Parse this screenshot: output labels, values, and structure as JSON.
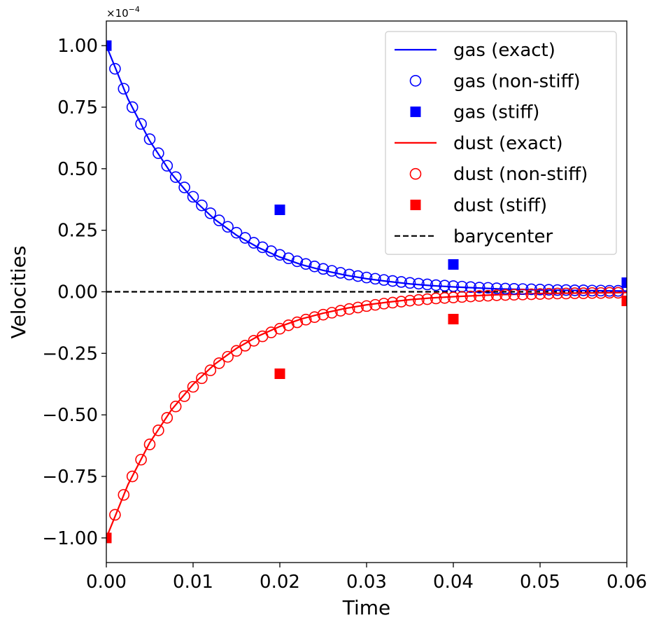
{
  "chart_data": {
    "type": "line",
    "xlabel": "Time",
    "ylabel": "Velocities",
    "xlim": [
      0,
      0.06
    ],
    "ylim": [
      -1.1,
      1.1
    ],
    "y_offset_text": "×10",
    "y_offset_exponent": "−4",
    "x_ticks": [
      {
        "value": 0.0,
        "label": "0.00"
      },
      {
        "value": 0.01,
        "label": "0.01"
      },
      {
        "value": 0.02,
        "label": "0.02"
      },
      {
        "value": 0.03,
        "label": "0.03"
      },
      {
        "value": 0.04,
        "label": "0.04"
      },
      {
        "value": 0.05,
        "label": "0.05"
      },
      {
        "value": 0.06,
        "label": "0.06"
      }
    ],
    "y_ticks": [
      {
        "value": 1.0,
        "label": "1.00"
      },
      {
        "value": 0.75,
        "label": "0.75"
      },
      {
        "value": 0.5,
        "label": "0.50"
      },
      {
        "value": 0.25,
        "label": "0.25"
      },
      {
        "value": 0.0,
        "label": "0.00"
      },
      {
        "value": -0.25,
        "label": "−0.25"
      },
      {
        "value": -0.5,
        "label": "−0.50"
      },
      {
        "value": -0.75,
        "label": "−0.75"
      },
      {
        "value": -1.0,
        "label": "−1.00"
      }
    ],
    "legend_position": "top-right",
    "grid": false,
    "series": [
      {
        "name": "gas (exact)",
        "kind": "line",
        "color": "#0000ff",
        "dash": "solid",
        "x": [
          0,
          0.0025,
          0.005,
          0.0075,
          0.01,
          0.0125,
          0.015,
          0.0175,
          0.02,
          0.0225,
          0.025,
          0.0275,
          0.03,
          0.0325,
          0.035,
          0.0375,
          0.04,
          0.0425,
          0.045,
          0.0475,
          0.05,
          0.0525,
          0.055,
          0.0575,
          0.06
        ],
        "y": [
          1.0,
          0.783,
          0.613,
          0.48,
          0.376,
          0.294,
          0.23,
          0.18,
          0.141,
          0.11,
          0.087,
          0.068,
          0.053,
          0.042,
          0.032,
          0.025,
          0.02,
          0.016,
          0.012,
          0.01,
          0.007,
          0.006,
          0.005,
          0.004,
          0.003
        ]
      },
      {
        "name": "gas (non-stiff)",
        "kind": "marker",
        "marker": "circle-open",
        "color": "#0000ff",
        "x": [
          0.001,
          0.002,
          0.003,
          0.004,
          0.005,
          0.006,
          0.007,
          0.008,
          0.009,
          0.01,
          0.011,
          0.012,
          0.013,
          0.014,
          0.015,
          0.016,
          0.017,
          0.018,
          0.019,
          0.02,
          0.021,
          0.022,
          0.023,
          0.024,
          0.025,
          0.026,
          0.027,
          0.028,
          0.029,
          0.03,
          0.031,
          0.032,
          0.033,
          0.034,
          0.035,
          0.036,
          0.037,
          0.038,
          0.039,
          0.04,
          0.041,
          0.042,
          0.043,
          0.044,
          0.045,
          0.046,
          0.047,
          0.048,
          0.049,
          0.05,
          0.051,
          0.052,
          0.053,
          0.054,
          0.055,
          0.056,
          0.057,
          0.058,
          0.059
        ],
        "y": [
          0.906,
          0.825,
          0.75,
          0.682,
          0.62,
          0.563,
          0.512,
          0.466,
          0.424,
          0.386,
          0.351,
          0.319,
          0.29,
          0.264,
          0.24,
          0.219,
          0.199,
          0.181,
          0.165,
          0.15,
          0.136,
          0.124,
          0.113,
          0.103,
          0.093,
          0.085,
          0.077,
          0.07,
          0.064,
          0.058,
          0.053,
          0.048,
          0.044,
          0.04,
          0.036,
          0.033,
          0.03,
          0.027,
          0.025,
          0.023,
          0.021,
          0.019,
          0.017,
          0.016,
          0.014,
          0.013,
          0.012,
          0.011,
          0.01,
          0.009,
          0.008,
          0.007,
          0.007,
          0.006,
          0.006,
          0.005,
          0.005,
          0.004,
          0.004
        ]
      },
      {
        "name": "gas (stiff)",
        "kind": "marker",
        "marker": "square-filled",
        "color": "#0000ff",
        "x": [
          0.0,
          0.02,
          0.04,
          0.06
        ],
        "y": [
          1.0,
          0.333,
          0.111,
          0.037
        ]
      },
      {
        "name": "dust (exact)",
        "kind": "line",
        "color": "#ff0000",
        "dash": "solid",
        "x": [
          0,
          0.0025,
          0.005,
          0.0075,
          0.01,
          0.0125,
          0.015,
          0.0175,
          0.02,
          0.0225,
          0.025,
          0.0275,
          0.03,
          0.0325,
          0.035,
          0.0375,
          0.04,
          0.0425,
          0.045,
          0.0475,
          0.05,
          0.0525,
          0.055,
          0.0575,
          0.06
        ],
        "y": [
          -1.0,
          -0.783,
          -0.613,
          -0.48,
          -0.376,
          -0.294,
          -0.23,
          -0.18,
          -0.141,
          -0.11,
          -0.087,
          -0.068,
          -0.053,
          -0.042,
          -0.032,
          -0.025,
          -0.02,
          -0.016,
          -0.012,
          -0.01,
          -0.007,
          -0.006,
          -0.005,
          -0.004,
          -0.003
        ]
      },
      {
        "name": "dust (non-stiff)",
        "kind": "marker",
        "marker": "circle-open",
        "color": "#ff0000",
        "x": [
          0.001,
          0.002,
          0.003,
          0.004,
          0.005,
          0.006,
          0.007,
          0.008,
          0.009,
          0.01,
          0.011,
          0.012,
          0.013,
          0.014,
          0.015,
          0.016,
          0.017,
          0.018,
          0.019,
          0.02,
          0.021,
          0.022,
          0.023,
          0.024,
          0.025,
          0.026,
          0.027,
          0.028,
          0.029,
          0.03,
          0.031,
          0.032,
          0.033,
          0.034,
          0.035,
          0.036,
          0.037,
          0.038,
          0.039,
          0.04,
          0.041,
          0.042,
          0.043,
          0.044,
          0.045,
          0.046,
          0.047,
          0.048,
          0.049,
          0.05,
          0.051,
          0.052,
          0.053,
          0.054,
          0.055,
          0.056,
          0.057,
          0.058,
          0.059
        ],
        "y": [
          -0.906,
          -0.825,
          -0.75,
          -0.682,
          -0.62,
          -0.563,
          -0.512,
          -0.466,
          -0.424,
          -0.386,
          -0.351,
          -0.319,
          -0.29,
          -0.264,
          -0.24,
          -0.219,
          -0.199,
          -0.181,
          -0.165,
          -0.15,
          -0.136,
          -0.124,
          -0.113,
          -0.103,
          -0.093,
          -0.085,
          -0.077,
          -0.07,
          -0.064,
          -0.058,
          -0.053,
          -0.048,
          -0.044,
          -0.04,
          -0.036,
          -0.033,
          -0.03,
          -0.027,
          -0.025,
          -0.023,
          -0.021,
          -0.019,
          -0.017,
          -0.016,
          -0.014,
          -0.013,
          -0.012,
          -0.011,
          -0.01,
          -0.009,
          -0.008,
          -0.007,
          -0.007,
          -0.006,
          -0.006,
          -0.005,
          -0.005,
          -0.004,
          -0.004
        ]
      },
      {
        "name": "dust (stiff)",
        "kind": "marker",
        "marker": "square-filled",
        "color": "#ff0000",
        "x": [
          0.0,
          0.02,
          0.04,
          0.06
        ],
        "y": [
          -1.0,
          -0.333,
          -0.111,
          -0.037
        ]
      },
      {
        "name": "barycenter",
        "kind": "line",
        "color": "#000000",
        "dash": "dashed",
        "x": [
          0,
          0.06
        ],
        "y": [
          0,
          0
        ]
      }
    ]
  }
}
